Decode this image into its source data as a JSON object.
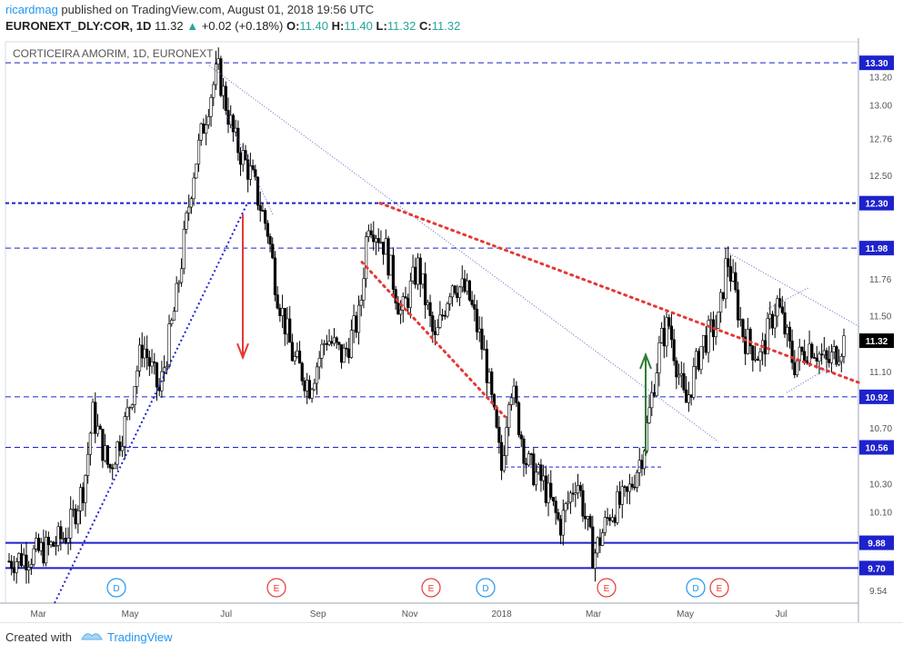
{
  "header": {
    "username": "ricardmag",
    "published_text": " published on TradingView.com, August 01, 2018 19:56 UTC",
    "symbol": "EURONEXT_DLY:COR, 1D",
    "last": "11.32",
    "change": "+0.02 (+0.18%)",
    "o_label": "O:",
    "o": "11.40",
    "h_label": "H:",
    "h": "11.40",
    "l_label": "L:",
    "l": "11.32",
    "c_label": "C:",
    "c": "11.32"
  },
  "footer": {
    "created_with": "Created with",
    "brand": "TradingView"
  },
  "colors": {
    "bull": "#ffffff",
    "bear": "#000000",
    "blue_line": "#1e22cc",
    "red_dotted": "#e53935",
    "green_arrow": "#2e7d32",
    "dividend": "#2196f3",
    "earnings": "#e53935"
  },
  "chart_data": {
    "type": "candlestick",
    "title": "CORTICEIRA AMORIM, 1D, EURONEXT",
    "x_tick_labels": [
      "Mar",
      "May",
      "Jul",
      "Sep",
      "Nov",
      "2018",
      "Mar",
      "May",
      "Jul"
    ],
    "y_tick_labels": [
      "13.20",
      "13.00",
      "12.76",
      "12.50",
      "12.30",
      "11.98",
      "11.76",
      "11.50",
      "11.32",
      "11.10",
      "10.92",
      "10.70",
      "10.56",
      "10.30",
      "10.10",
      "9.88",
      "9.70",
      "9.54"
    ],
    "ylim": [
      9.45,
      13.45
    ],
    "price_levels": [
      {
        "label": "13.30",
        "value": 13.3,
        "style": "dashed"
      },
      {
        "label": "12.30",
        "value": 12.3,
        "style": "dashed"
      },
      {
        "label": "11.98",
        "value": 11.98,
        "style": "dashed"
      },
      {
        "label": "11.32",
        "value": 11.32,
        "style": "last-price"
      },
      {
        "label": "10.92",
        "value": 10.92,
        "style": "dashed"
      },
      {
        "label": "10.56",
        "value": 10.56,
        "style": "dashed"
      },
      {
        "label": "9.88",
        "value": 9.88,
        "style": "solid"
      },
      {
        "label": "9.70",
        "value": 9.7,
        "style": "solid"
      }
    ],
    "events": [
      {
        "type": "D",
        "period": "Apr 2017"
      },
      {
        "type": "E",
        "period": "Jul 2017"
      },
      {
        "type": "E",
        "period": "Oct 2017"
      },
      {
        "type": "D",
        "period": "Dec 2017"
      },
      {
        "type": "E",
        "period": "Mar 2018"
      },
      {
        "type": "D",
        "period": "Apr 2018"
      },
      {
        "type": "E",
        "period": "May 2018"
      }
    ],
    "price_path": [
      {
        "t": 0,
        "p": 9.75
      },
      {
        "t": 0.03,
        "p": 9.8
      },
      {
        "t": 0.05,
        "p": 9.85
      },
      {
        "t": 0.07,
        "p": 9.95
      },
      {
        "t": 0.09,
        "p": 10.3
      },
      {
        "t": 0.1,
        "p": 10.8
      },
      {
        "t": 0.12,
        "p": 10.4
      },
      {
        "t": 0.14,
        "p": 10.75
      },
      {
        "t": 0.16,
        "p": 11.3
      },
      {
        "t": 0.18,
        "p": 10.95
      },
      {
        "t": 0.2,
        "p": 11.6
      },
      {
        "t": 0.22,
        "p": 12.5
      },
      {
        "t": 0.24,
        "p": 13.05
      },
      {
        "t": 0.25,
        "p": 13.25
      },
      {
        "t": 0.27,
        "p": 12.75
      },
      {
        "t": 0.29,
        "p": 12.5
      },
      {
        "t": 0.31,
        "p": 12.1
      },
      {
        "t": 0.32,
        "p": 11.7
      },
      {
        "t": 0.34,
        "p": 11.2
      },
      {
        "t": 0.36,
        "p": 11.0
      },
      {
        "t": 0.38,
        "p": 11.35
      },
      {
        "t": 0.4,
        "p": 11.2
      },
      {
        "t": 0.42,
        "p": 11.5
      },
      {
        "t": 0.43,
        "p": 12.2
      },
      {
        "t": 0.45,
        "p": 12.0
      },
      {
        "t": 0.47,
        "p": 11.5
      },
      {
        "t": 0.49,
        "p": 11.85
      },
      {
        "t": 0.51,
        "p": 11.3
      },
      {
        "t": 0.53,
        "p": 11.75
      },
      {
        "t": 0.55,
        "p": 11.65
      },
      {
        "t": 0.57,
        "p": 11.2
      },
      {
        "t": 0.59,
        "p": 10.4
      },
      {
        "t": 0.6,
        "p": 11.05
      },
      {
        "t": 0.62,
        "p": 10.45
      },
      {
        "t": 0.64,
        "p": 10.3
      },
      {
        "t": 0.66,
        "p": 10.0
      },
      {
        "t": 0.68,
        "p": 10.35
      },
      {
        "t": 0.7,
        "p": 9.78
      },
      {
        "t": 0.72,
        "p": 10.1
      },
      {
        "t": 0.74,
        "p": 10.2
      },
      {
        "t": 0.76,
        "p": 10.55
      },
      {
        "t": 0.78,
        "p": 11.3
      },
      {
        "t": 0.79,
        "p": 11.45
      },
      {
        "t": 0.81,
        "p": 10.85
      },
      {
        "t": 0.83,
        "p": 11.3
      },
      {
        "t": 0.85,
        "p": 11.45
      },
      {
        "t": 0.86,
        "p": 11.92
      },
      {
        "t": 0.88,
        "p": 11.35
      },
      {
        "t": 0.9,
        "p": 11.2
      },
      {
        "t": 0.92,
        "p": 11.6
      },
      {
        "t": 0.94,
        "p": 11.15
      },
      {
        "t": 0.96,
        "p": 11.3
      },
      {
        "t": 0.98,
        "p": 11.15
      },
      {
        "t": 1.0,
        "p": 11.32
      }
    ]
  }
}
